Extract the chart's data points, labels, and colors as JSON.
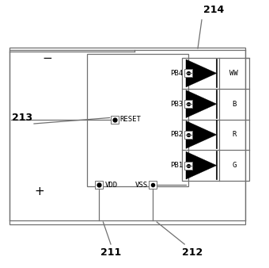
{
  "bg_color": "#ffffff",
  "line_color": "#707070",
  "label_211": "211",
  "label_212": "212",
  "label_213": "213",
  "label_214": "214",
  "pins_left": [
    "PB4",
    "PB3",
    "PB2",
    "PB1"
  ],
  "vdd_label": "VDD",
  "vss_label": "VSS",
  "reset_label": "RESET",
  "led_labels": [
    "WW",
    "B",
    "R",
    "G"
  ],
  "font_size": 6.5,
  "label_font_size": 9
}
